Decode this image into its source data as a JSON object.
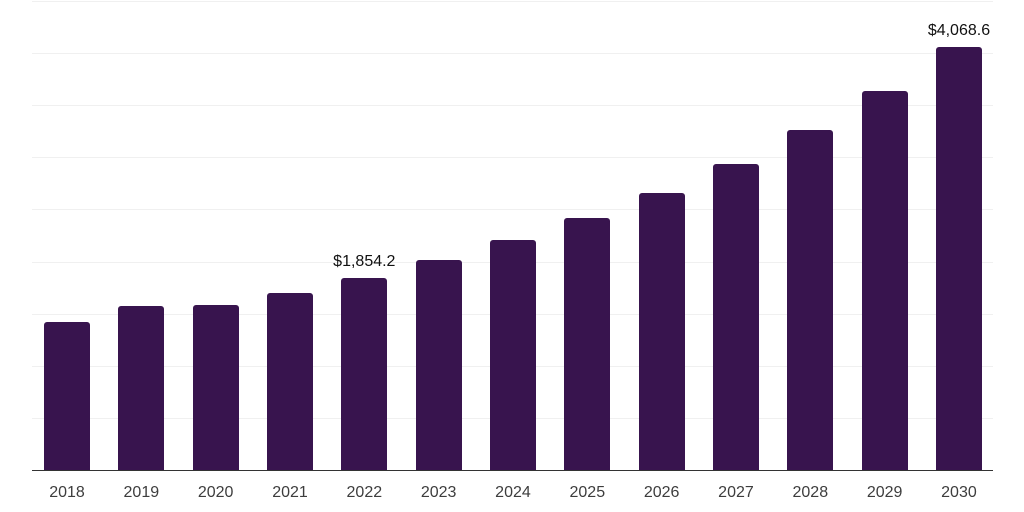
{
  "chart_data": {
    "type": "bar",
    "title": "",
    "xlabel": "",
    "ylabel": "",
    "categories": [
      "2018",
      "2019",
      "2020",
      "2021",
      "2022",
      "2023",
      "2024",
      "2025",
      "2026",
      "2027",
      "2028",
      "2029",
      "2030"
    ],
    "values": [
      1430,
      1580,
      1595,
      1705,
      1854.2,
      2020,
      2220,
      2430,
      2665,
      2950,
      3270,
      3645,
      4068.6
    ],
    "data_labels": [
      "",
      "",
      "",
      "",
      "$1,854.2",
      "",
      "",
      "",
      "",
      "",
      "",
      "",
      "$4,068.6"
    ],
    "ylim": [
      0,
      4500
    ],
    "gridline_step": 500,
    "grid": true,
    "legend": false,
    "y_axis_labels_visible": false,
    "bar_color": "#38144E",
    "gridline_color": "#f0f0f0",
    "axis_line_color": "#333333",
    "tick_label_color": "#3d3d3d",
    "data_label_color": "#111111"
  }
}
